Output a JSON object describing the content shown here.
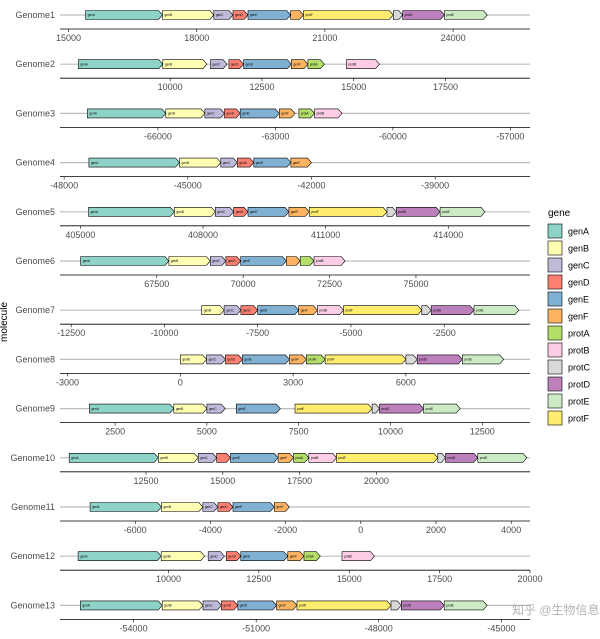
{
  "chart_data": {
    "type": "gene-arrow",
    "ylabel": "molecule",
    "legend_title": "gene",
    "legend_position": "right",
    "colors": {
      "genA": "#8dd3c7",
      "genB": "#ffffb3",
      "genC": "#bebada",
      "genD": "#fb8072",
      "genE": "#80b1d3",
      "genF": "#fdb462",
      "protA": "#b3de69",
      "protB": "#fccde5",
      "protC": "#d9d9d9",
      "protD": "#bc80bd",
      "protE": "#ccebc5",
      "protF": "#ffed6f"
    },
    "legend": [
      "genA",
      "genB",
      "genC",
      "genD",
      "genE",
      "genF",
      "protA",
      "protB",
      "protC",
      "protD",
      "protE",
      "protF"
    ],
    "genomes": [
      {
        "name": "Genome1",
        "xlim": [
          14800,
          25800
        ],
        "ticks": [
          15000,
          18000,
          21000,
          24000
        ],
        "genes": [
          {
            "gene": "genA",
            "start": 15400,
            "end": 17200
          },
          {
            "gene": "genB",
            "start": 17200,
            "end": 18400
          },
          {
            "gene": "genC",
            "start": 18400,
            "end": 18850
          },
          {
            "gene": "genD",
            "start": 18850,
            "end": 19200
          },
          {
            "gene": "genE",
            "start": 19200,
            "end": 20200
          },
          {
            "gene": "genF",
            "start": 20200,
            "end": 20500
          },
          {
            "gene": "protF",
            "start": 20500,
            "end": 22600
          },
          {
            "gene": "protC",
            "start": 22600,
            "end": 22820
          },
          {
            "gene": "protD",
            "start": 22820,
            "end": 23800
          },
          {
            "gene": "protE",
            "start": 23800,
            "end": 24800
          }
        ]
      },
      {
        "name": "Genome2",
        "xlim": [
          7000,
          19800
        ],
        "ticks": [
          10000,
          12500,
          15000,
          17500
        ],
        "genes": [
          {
            "gene": "genA",
            "start": 7500,
            "end": 9800
          },
          {
            "gene": "genB",
            "start": 9800,
            "end": 11000
          },
          {
            "gene": "genC",
            "start": 11100,
            "end": 11550
          },
          {
            "gene": "genD",
            "start": 11600,
            "end": 12000
          },
          {
            "gene": "genE",
            "start": 12000,
            "end": 13300
          },
          {
            "gene": "genF",
            "start": 13300,
            "end": 13750
          },
          {
            "gene": "protA",
            "start": 13750,
            "end": 14200
          },
          {
            "gene": "protB",
            "start": 14800,
            "end": 15700
          }
        ]
      },
      {
        "name": "Genome3",
        "xlim": [
          -68500,
          -56500
        ],
        "ticks": [
          -66000,
          -63000,
          -60000,
          -57000
        ],
        "genes": [
          {
            "gene": "genA",
            "start": -67800,
            "end": -65800
          },
          {
            "gene": "genB",
            "start": -65800,
            "end": -64800
          },
          {
            "gene": "genC",
            "start": -64800,
            "end": -64300
          },
          {
            "gene": "genD",
            "start": -64300,
            "end": -63900
          },
          {
            "gene": "genE",
            "start": -63900,
            "end": -62900
          },
          {
            "gene": "genF",
            "start": -62900,
            "end": -62500
          },
          {
            "gene": "protA",
            "start": -62400,
            "end": -62000
          },
          {
            "gene": "protB",
            "start": -62000,
            "end": -61300
          }
        ]
      },
      {
        "name": "Genome4",
        "xlim": [
          -48100,
          -36700
        ],
        "ticks": [
          -48000,
          -45000,
          -42000,
          -39000
        ],
        "genes": [
          {
            "gene": "genA",
            "start": -47400,
            "end": -45200
          },
          {
            "gene": "genB",
            "start": -45200,
            "end": -44200
          },
          {
            "gene": "genC",
            "start": -44200,
            "end": -43800
          },
          {
            "gene": "genD",
            "start": -43800,
            "end": -43400
          },
          {
            "gene": "genE",
            "start": -43400,
            "end": -42500
          },
          {
            "gene": "genF",
            "start": -42500,
            "end": -42000
          }
        ]
      },
      {
        "name": "Genome5",
        "xlim": [
          404500,
          416000
        ],
        "ticks": [
          405000,
          408000,
          411000,
          414000
        ],
        "genes": [
          {
            "gene": "genA",
            "start": 405200,
            "end": 407300
          },
          {
            "gene": "genB",
            "start": 407300,
            "end": 408300
          },
          {
            "gene": "genC",
            "start": 408300,
            "end": 408750
          },
          {
            "gene": "genD",
            "start": 408750,
            "end": 409100
          },
          {
            "gene": "genE",
            "start": 409100,
            "end": 410100
          },
          {
            "gene": "genF",
            "start": 410100,
            "end": 410600
          },
          {
            "gene": "protF",
            "start": 410600,
            "end": 412500
          },
          {
            "gene": "protC",
            "start": 412500,
            "end": 412730
          },
          {
            "gene": "protD",
            "start": 412730,
            "end": 413800
          },
          {
            "gene": "protE",
            "start": 413800,
            "end": 414900
          }
        ]
      },
      {
        "name": "Genome6",
        "xlim": [
          64700,
          78300
        ],
        "ticks": [
          67500,
          70000,
          72500,
          75000
        ],
        "genes": [
          {
            "gene": "genA",
            "start": 65300,
            "end": 67850
          },
          {
            "gene": "genB",
            "start": 67850,
            "end": 69050
          },
          {
            "gene": "genC",
            "start": 69050,
            "end": 69500
          },
          {
            "gene": "genD",
            "start": 69500,
            "end": 69930
          },
          {
            "gene": "genE",
            "start": 69930,
            "end": 71250
          },
          {
            "gene": "genF",
            "start": 71250,
            "end": 71650
          },
          {
            "gene": "protA",
            "start": 71650,
            "end": 72050
          },
          {
            "gene": "protB",
            "start": 72050,
            "end": 72950
          }
        ]
      },
      {
        "name": "Genome7",
        "xlim": [
          -12800,
          -200
        ],
        "ticks": [
          -12500,
          -10000,
          -7500,
          -5000,
          -2500
        ],
        "genes": [
          {
            "gene": "genB",
            "start": -9000,
            "end": -8400
          },
          {
            "gene": "genC",
            "start": -8400,
            "end": -7950
          },
          {
            "gene": "genD",
            "start": -7950,
            "end": -7500
          },
          {
            "gene": "genE",
            "start": -7500,
            "end": -6400
          },
          {
            "gene": "genF",
            "start": -6400,
            "end": -5900
          },
          {
            "gene": "protB",
            "start": -5900,
            "end": -5200
          },
          {
            "gene": "protF",
            "start": -5200,
            "end": -3100
          },
          {
            "gene": "protC",
            "start": -3100,
            "end": -2850
          },
          {
            "gene": "protD",
            "start": -2850,
            "end": -1700
          },
          {
            "gene": "protE",
            "start": -1700,
            "end": -500
          }
        ]
      },
      {
        "name": "Genome8",
        "xlim": [
          -3200,
          9300
        ],
        "ticks": [
          -3000,
          0,
          3000,
          6000
        ],
        "genes": [
          {
            "gene": "genB",
            "start": 0,
            "end": 700
          },
          {
            "gene": "genC",
            "start": 700,
            "end": 1200
          },
          {
            "gene": "genD",
            "start": 1200,
            "end": 1650
          },
          {
            "gene": "genE",
            "start": 1650,
            "end": 2900
          },
          {
            "gene": "genF",
            "start": 2900,
            "end": 3350
          },
          {
            "gene": "protA",
            "start": 3350,
            "end": 3850
          },
          {
            "gene": "protF",
            "start": 3850,
            "end": 6000
          },
          {
            "gene": "protC",
            "start": 6000,
            "end": 6300
          },
          {
            "gene": "protD",
            "start": 6300,
            "end": 7500
          },
          {
            "gene": "protE",
            "start": 7500,
            "end": 8600
          }
        ]
      },
      {
        "name": "Genome9",
        "xlim": [
          1000,
          13800
        ],
        "ticks": [
          2500,
          5000,
          7500,
          10000,
          12500
        ],
        "genes": [
          {
            "gene": "genA",
            "start": 1800,
            "end": 4100
          },
          {
            "gene": "genB",
            "start": 4100,
            "end": 5000
          },
          {
            "gene": "genC",
            "start": 5000,
            "end": 5500
          },
          {
            "gene": "genE",
            "start": 5800,
            "end": 7000
          },
          {
            "gene": "protF",
            "start": 7400,
            "end": 9500
          },
          {
            "gene": "protC",
            "start": 9500,
            "end": 9700
          },
          {
            "gene": "protD",
            "start": 9700,
            "end": 10900
          },
          {
            "gene": "protE",
            "start": 10900,
            "end": 11900
          }
        ]
      },
      {
        "name": "Genome10",
        "xlim": [
          9700,
          25000
        ],
        "ticks": [
          12500,
          15000,
          17500,
          20000
        ],
        "genes": [
          {
            "gene": "genA",
            "start": 10000,
            "end": 12900
          },
          {
            "gene": "genB",
            "start": 12900,
            "end": 14200
          },
          {
            "gene": "genC",
            "start": 14200,
            "end": 14800
          },
          {
            "gene": "genD",
            "start": 14800,
            "end": 15250
          },
          {
            "gene": "genE",
            "start": 15250,
            "end": 16800
          },
          {
            "gene": "genF",
            "start": 16800,
            "end": 17300
          },
          {
            "gene": "protA",
            "start": 17300,
            "end": 17800
          },
          {
            "gene": "protB",
            "start": 17800,
            "end": 18700
          },
          {
            "gene": "protF",
            "start": 18700,
            "end": 22000
          },
          {
            "gene": "protC",
            "start": 22000,
            "end": 22250
          },
          {
            "gene": "protD",
            "start": 22250,
            "end": 23300
          },
          {
            "gene": "protE",
            "start": 23300,
            "end": 24900
          }
        ]
      },
      {
        "name": "Genome11",
        "xlim": [
          -8000,
          4500
        ],
        "ticks": [
          -6000,
          -4000,
          -2000,
          0,
          2000,
          4000
        ],
        "genes": [
          {
            "gene": "genA",
            "start": -7200,
            "end": -5300
          },
          {
            "gene": "genB",
            "start": -5300,
            "end": -4200
          },
          {
            "gene": "genC",
            "start": -4200,
            "end": -3800
          },
          {
            "gene": "genD",
            "start": -3800,
            "end": -3400
          },
          {
            "gene": "genE",
            "start": -3400,
            "end": -2300
          },
          {
            "gene": "genF",
            "start": -2300,
            "end": -1900
          }
        ]
      },
      {
        "name": "Genome12",
        "xlim": [
          7000,
          20000
        ],
        "ticks": [
          10000,
          12500,
          15000,
          17500,
          20000
        ],
        "genes": [
          {
            "gene": "genA",
            "start": 7500,
            "end": 9800
          },
          {
            "gene": "genB",
            "start": 9800,
            "end": 11000
          },
          {
            "gene": "genC",
            "start": 11100,
            "end": 11550
          },
          {
            "gene": "genD",
            "start": 11600,
            "end": 12000
          },
          {
            "gene": "genE",
            "start": 12000,
            "end": 13300
          },
          {
            "gene": "genF",
            "start": 13300,
            "end": 13750
          },
          {
            "gene": "protA",
            "start": 13750,
            "end": 14200
          },
          {
            "gene": "protB",
            "start": 14800,
            "end": 15700
          }
        ]
      },
      {
        "name": "Genome13",
        "xlim": [
          -55800,
          -44300
        ],
        "ticks": [
          -54000,
          -51000,
          -48000,
          -45000
        ],
        "genes": [
          {
            "gene": "genA",
            "start": -55300,
            "end": -53300
          },
          {
            "gene": "genB",
            "start": -53300,
            "end": -52300
          },
          {
            "gene": "genC",
            "start": -52300,
            "end": -51850
          },
          {
            "gene": "genD",
            "start": -51850,
            "end": -51450
          },
          {
            "gene": "genE",
            "start": -51450,
            "end": -50500
          },
          {
            "gene": "genF",
            "start": -50500,
            "end": -50000
          },
          {
            "gene": "protF",
            "start": -50000,
            "end": -47700
          },
          {
            "gene": "protC",
            "start": -47700,
            "end": -47450
          },
          {
            "gene": "protD",
            "start": -47450,
            "end": -46400
          },
          {
            "gene": "protE",
            "start": -46400,
            "end": -45350
          }
        ]
      }
    ]
  },
  "watermark": "知乎 @生物信息学"
}
